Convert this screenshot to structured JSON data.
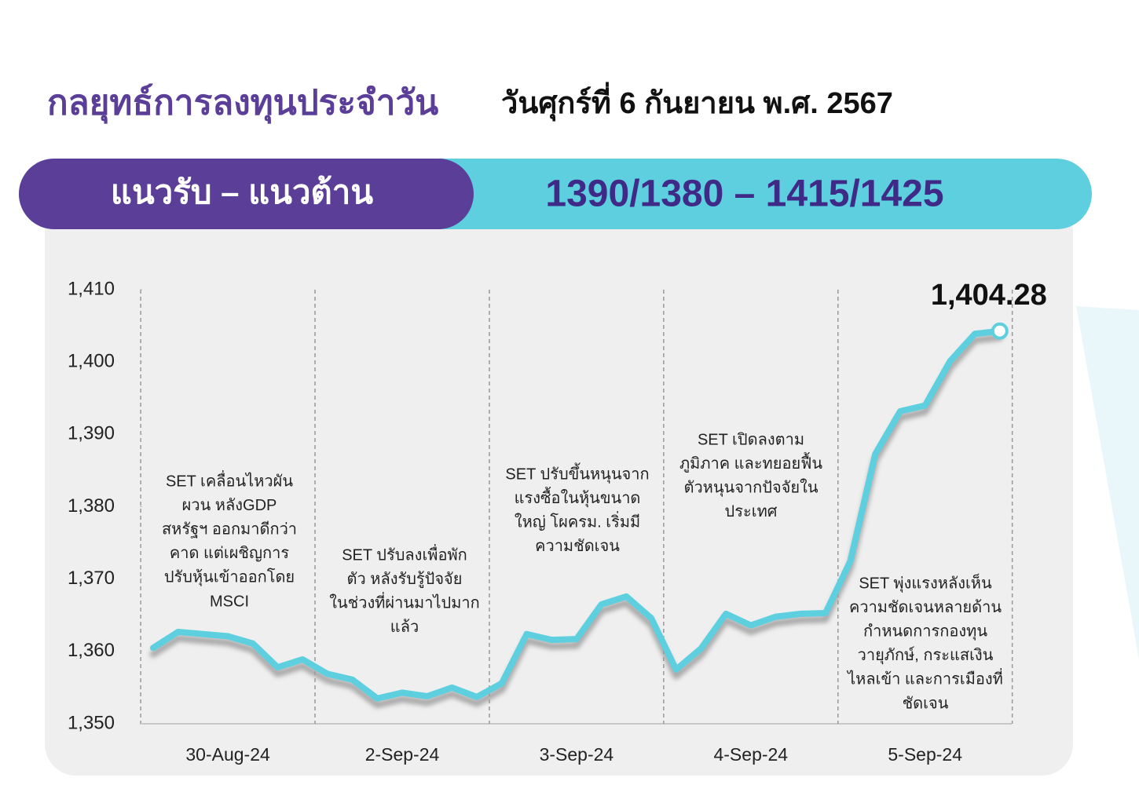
{
  "header": {
    "title": "กลยุทธ์การลงทุนประจำวัน",
    "date": "วันศุกร์ที่ 6 กันยายน พ.ศ. 2567",
    "band_label": "แนวรับ – แนวต้าน",
    "band_value": "1390/1380  – 1415/1425"
  },
  "chart_data": {
    "type": "line",
    "categories": [
      null,
      null,
      null,
      "30-Aug-24",
      null,
      null,
      null,
      null,
      null,
      null,
      "2-Sep-24",
      null,
      null,
      null,
      null,
      null,
      null,
      "3-Sep-24",
      null,
      null,
      null,
      null,
      null,
      null,
      "4-Sep-24",
      null,
      null,
      null,
      null,
      null,
      null,
      "5-Sep-24",
      null,
      null,
      null
    ],
    "series": [
      {
        "name": "SET",
        "color": "#5ecfdf",
        "values": [
          1360.5,
          1362.7,
          1362.4,
          1362.1,
          1361.1,
          1357.8,
          1358.9,
          1356.9,
          1356.1,
          1353.5,
          1354.3,
          1353.8,
          1355.0,
          1353.7,
          1355.6,
          1362.4,
          1361.6,
          1361.7,
          1366.5,
          1367.6,
          1364.6,
          1357.5,
          1360.4,
          1365.2,
          1363.6,
          1364.8,
          1365.2,
          1365.3,
          1372.5,
          1387.3,
          1393.2,
          1394.0,
          1400.1,
          1403.9,
          1404.28
        ],
        "value_labels": [
          null,
          null,
          null,
          null,
          null,
          null,
          null,
          null,
          null,
          null,
          null,
          null,
          null,
          null,
          null,
          null,
          null,
          null,
          null,
          null,
          null,
          null,
          null,
          null,
          null,
          null,
          null,
          null,
          null,
          null,
          null,
          null,
          null,
          null,
          "1,404.28"
        ]
      }
    ],
    "ylim": [
      1350,
      1410
    ],
    "yticks": [
      {
        "value": 1350,
        "label": "1,350"
      },
      {
        "value": 1360,
        "label": "1,360"
      },
      {
        "value": 1370,
        "label": "1,370"
      },
      {
        "value": 1380,
        "label": "1,380"
      },
      {
        "value": 1390,
        "label": "1,390"
      },
      {
        "value": 1400,
        "label": "1,400"
      },
      {
        "value": 1410,
        "label": "1,410"
      }
    ],
    "annotations": [
      [
        "SET เคลื่อนไหวผัน",
        "ผวน หลังGDP",
        "สหรัฐฯ ออกมาดีกว่า",
        "คาด แต่เผชิญการ",
        "ปรับหุ้นเข้าออกโดย",
        "MSCI"
      ],
      [
        "SET ปรับลงเพื่อพัก",
        "ตัว หลังรับรู้ปัจจัย",
        "ในช่วงที่ผ่านมาไปมาก",
        "แล้ว"
      ],
      [
        "SET ปรับขึ้นหนุนจาก",
        "แรงซื้อในหุ้นขนาด",
        "ใหญ่ โผครม. เริ่มมี",
        "ความชัดเจน"
      ],
      [
        "SET เปิดลงตาม",
        "ภูมิภาค และทยอยฟื้น",
        "ตัวหนุนจากปัจจัยใน",
        "ประเทศ"
      ],
      [
        "SET พุ่งแรงหลังเห็น",
        "ความชัดเจนหลายด้าน",
        "กำหนดการกองทุน",
        "วายุภักษ์, กระแสเงิน",
        "ไหลเข้า และการเมืองที่",
        "ชัดเจน"
      ]
    ]
  }
}
